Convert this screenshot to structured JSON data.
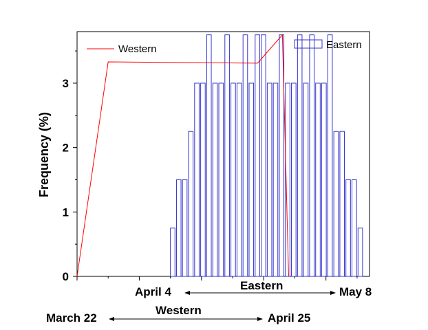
{
  "chart_data": {
    "type": "bar",
    "ylabel": "Frequency (%)",
    "ylim": [
      0,
      3.8
    ],
    "y_ticks": [
      "0",
      "1",
      "2",
      "3"
    ],
    "legend": {
      "placement": "top-right"
    },
    "series": [
      {
        "name": "Eastern",
        "type": "bar",
        "color": "#3333cc",
        "fill": "none",
        "values": [
          0.75,
          1.5,
          1.5,
          2.25,
          3.0,
          3.0,
          3.75,
          3.0,
          3.0,
          3.75,
          3.0,
          3.0,
          3.75,
          3.0,
          3.75,
          3.75,
          3.0,
          3.0,
          3.75,
          3.0,
          3.0,
          3.75,
          3.0,
          3.75,
          3.0,
          3.0,
          3.75,
          2.25,
          2.25,
          1.5,
          1.5,
          0.75
        ]
      },
      {
        "name": "Western",
        "type": "line",
        "color": "#ff0000",
        "x": [
          "March 22",
          "March 27",
          "April 20",
          "April 24",
          "April 25"
        ],
        "values": [
          0,
          3.33,
          3.31,
          3.75,
          0
        ]
      }
    ],
    "date_ranges": [
      {
        "label": "Eastern",
        "start": "April 4",
        "end": "May 8"
      },
      {
        "label": "Western",
        "start": "March 22",
        "end": "April 25"
      }
    ]
  }
}
